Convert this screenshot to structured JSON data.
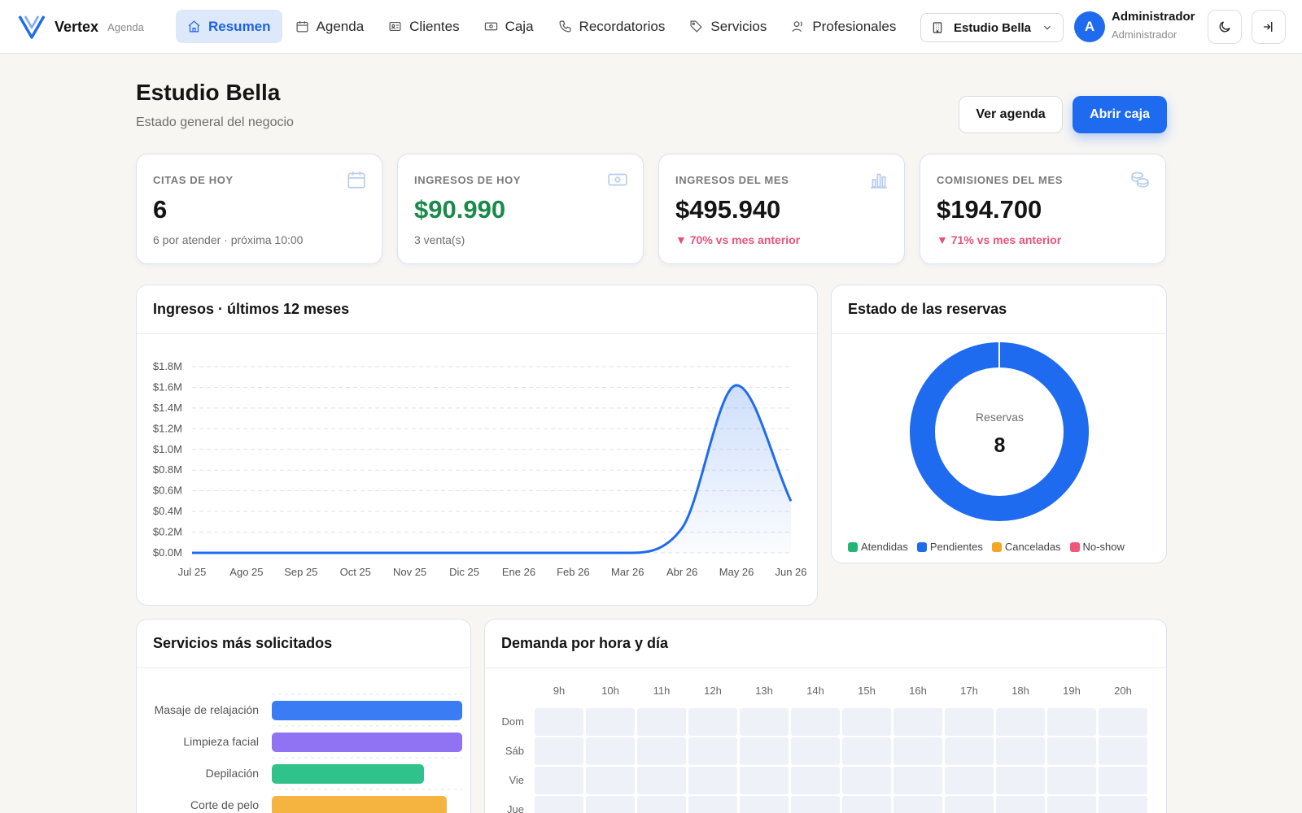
{
  "brand": {
    "name": "Vertex",
    "sub": "Agenda"
  },
  "nav": [
    {
      "label": "Resumen",
      "icon": "home-icon",
      "active": true
    },
    {
      "label": "Agenda",
      "icon": "calendar-icon"
    },
    {
      "label": "Clientes",
      "icon": "id-card-icon"
    },
    {
      "label": "Caja",
      "icon": "cash-icon"
    },
    {
      "label": "Recordatorios",
      "icon": "phone-icon"
    },
    {
      "label": "Servicios",
      "icon": "tag-icon"
    },
    {
      "label": "Profesionales",
      "icon": "users-icon"
    }
  ],
  "studio": {
    "selected": "Estudio Bella"
  },
  "user": {
    "initial": "A",
    "name": "Administrador",
    "role": "Administrador"
  },
  "header": {
    "title": "Estudio Bella",
    "subtitle": "Estado general del negocio",
    "btn_agenda": "Ver agenda",
    "btn_caja": "Abrir caja"
  },
  "kpis": [
    {
      "label": "CITAS DE HOY",
      "value": "6",
      "note": "6 por atender · próxima 10:00",
      "icon": "calendar-icon"
    },
    {
      "label": "INGRESOS DE HOY",
      "value": "$90.990",
      "note": "3 venta(s)",
      "icon": "cash-icon"
    },
    {
      "label": "INGRESOS DEL MES",
      "value": "$495.940",
      "note": "▼ 70% vs mes anterior",
      "icon": "bar-chart-icon"
    },
    {
      "label": "COMISIONES DEL MES",
      "value": "$194.700",
      "note": "▼ 71% vs mes anterior",
      "icon": "coins-icon"
    }
  ],
  "revenue": {
    "title": "Ingresos · últimos 12 meses"
  },
  "bookings": {
    "title": "Estado de las reservas",
    "center_label": "Reservas",
    "center_value": "8"
  },
  "services": {
    "title": "Servicios más solicitados"
  },
  "demand": {
    "title": "Demanda por hora y día",
    "hours": [
      "9h",
      "10h",
      "11h",
      "12h",
      "13h",
      "14h",
      "15h",
      "16h",
      "17h",
      "18h",
      "19h",
      "20h"
    ],
    "days": [
      "Dom",
      "Sáb",
      "Vie",
      "Jue"
    ]
  },
  "chart_data": [
    {
      "type": "area",
      "title": "Ingresos · últimos 12 meses",
      "categories": [
        "Jul 25",
        "Ago 25",
        "Sep 25",
        "Oct 25",
        "Nov 25",
        "Dic 25",
        "Ene 26",
        "Feb 26",
        "Mar 26",
        "Abr 26",
        "May 26",
        "Jun 26"
      ],
      "values": [
        0,
        0,
        0,
        0,
        0,
        0,
        0,
        0,
        0,
        0.24,
        1.62,
        0.5
      ],
      "unit": "M",
      "ylim": [
        0,
        1.8
      ],
      "yticks": [
        "$0.0M",
        "$0.2M",
        "$0.4M",
        "$0.6M",
        "$0.8M",
        "$1.0M",
        "$1.2M",
        "$1.4M",
        "$1.6M",
        "$1.8M"
      ],
      "grid": true,
      "color": "#1f6bf0"
    },
    {
      "type": "pie",
      "title": "Estado de las reservas",
      "labels": [
        "Atendidas",
        "Pendientes",
        "Canceladas",
        "No-show"
      ],
      "values": [
        0,
        8,
        0,
        0
      ],
      "colors": [
        "#22b573",
        "#1f6bf0",
        "#f4a623",
        "#f2557a"
      ],
      "legend": "bottom"
    },
    {
      "type": "bar",
      "orientation": "horizontal",
      "title": "Servicios más solicitados",
      "categories": [
        "Masaje de relajación",
        "Limpieza facial",
        "Depilación",
        "Corte de pelo"
      ],
      "values": [
        1,
        1,
        0.8,
        0.92
      ],
      "colors": [
        "#3a7cf4",
        "#8f73f2",
        "#2fc28a",
        "#f5b340"
      ]
    },
    {
      "type": "heatmap",
      "title": "Demanda por hora y día",
      "x": [
        "9h",
        "10h",
        "11h",
        "12h",
        "13h",
        "14h",
        "15h",
        "16h",
        "17h",
        "18h",
        "19h",
        "20h"
      ],
      "y": [
        "Dom",
        "Sáb",
        "Vie",
        "Jue"
      ],
      "values": [
        [
          0,
          0,
          0,
          0,
          0,
          0,
          0,
          0,
          0,
          0,
          0,
          0
        ],
        [
          0,
          0,
          0,
          0,
          0,
          0,
          0,
          0,
          0,
          0,
          0,
          0
        ],
        [
          0,
          0,
          0,
          0,
          0,
          0,
          0,
          0,
          0,
          0,
          0,
          0
        ],
        [
          0,
          0,
          0,
          0,
          0,
          0,
          0,
          0,
          0,
          0,
          0,
          0
        ]
      ]
    }
  ]
}
